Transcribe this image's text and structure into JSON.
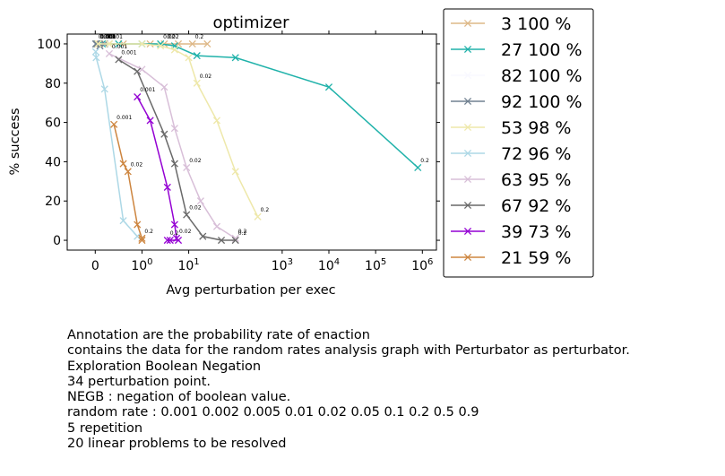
{
  "chart_data": {
    "type": "line",
    "title": "optimizer",
    "xlabel": "Avg perturbation per exec",
    "ylabel": "% success",
    "x_scale": "symlog",
    "xlim": [
      -0.6,
      2000000
    ],
    "ylim": [
      -5,
      105
    ],
    "x_ticks": [
      {
        "value": 0,
        "label": "0"
      },
      {
        "value": 1,
        "label": "10^0"
      },
      {
        "value": 10,
        "label": "10^1"
      },
      {
        "value": 1000,
        "label": "10^3"
      },
      {
        "value": 10000,
        "label": "10^4"
      },
      {
        "value": 100000,
        "label": "10^5"
      },
      {
        "value": 1000000,
        "label": "10^6"
      }
    ],
    "y_ticks": [
      0,
      20,
      40,
      60,
      80,
      100
    ],
    "legend_position": "outside right",
    "series": [
      {
        "name": "3 100 %",
        "color": "#DEB887",
        "points": [
          [
            0.04,
            100,
            "0.001"
          ],
          [
            0.1,
            100,
            ""
          ],
          [
            0.3,
            100,
            ""
          ],
          [
            0.6,
            100,
            ""
          ],
          [
            1.5,
            100,
            ""
          ],
          [
            3,
            100,
            "0.02"
          ],
          [
            6,
            100,
            ""
          ],
          [
            12,
            100,
            "0.2"
          ],
          [
            25,
            100,
            ""
          ]
        ]
      },
      {
        "name": "27 100 %",
        "color": "#20B2AA",
        "points": [
          [
            0.05,
            100,
            "0.001"
          ],
          [
            0.15,
            100,
            ""
          ],
          [
            0.5,
            100,
            ""
          ],
          [
            1.0,
            100,
            ""
          ],
          [
            2.5,
            100,
            "0.02"
          ],
          [
            5,
            99,
            ""
          ],
          [
            15,
            94,
            ""
          ],
          [
            100,
            93,
            ""
          ],
          [
            10000,
            78,
            ""
          ],
          [
            800000,
            37,
            "0.2"
          ]
        ]
      },
      {
        "name": "82 100 %",
        "color": "#F8F8FF",
        "points": [
          [
            0.01,
            100,
            ""
          ],
          [
            0.05,
            100,
            ""
          ],
          [
            0.2,
            100,
            ""
          ]
        ]
      },
      {
        "name": "92 100 %",
        "color": "#708090",
        "points": [
          [
            0.01,
            100,
            "0.001"
          ],
          [
            0.02,
            100,
            ""
          ],
          [
            0.05,
            100,
            ""
          ],
          [
            0.1,
            99,
            ""
          ],
          [
            0.2,
            100,
            "0.001"
          ]
        ]
      },
      {
        "name": "53 98 %",
        "color": "#EEE8AA",
        "points": [
          [
            0.06,
            100,
            "0.001"
          ],
          [
            0.3,
            100,
            ""
          ],
          [
            1.0,
            100,
            ""
          ],
          [
            2.5,
            99,
            ""
          ],
          [
            5,
            97,
            ""
          ],
          [
            10,
            93,
            ""
          ],
          [
            15,
            80,
            "0.02"
          ],
          [
            40,
            61,
            ""
          ],
          [
            100,
            35,
            ""
          ],
          [
            300,
            12,
            "0.2"
          ]
        ]
      },
      {
        "name": "72 96 %",
        "color": "#ADD8E6",
        "points": [
          [
            0.01,
            96,
            ""
          ],
          [
            0.02,
            93,
            ""
          ],
          [
            0.2,
            77,
            ""
          ],
          [
            0.6,
            10,
            ""
          ],
          [
            0.9,
            2,
            ""
          ]
        ]
      },
      {
        "name": "63 95 %",
        "color": "#D8BFD8",
        "points": [
          [
            0.3,
            95,
            "0.001"
          ],
          [
            1.0,
            87,
            ""
          ],
          [
            3,
            78,
            ""
          ],
          [
            5,
            57,
            ""
          ],
          [
            9,
            37,
            "0.02"
          ],
          [
            18,
            20,
            ""
          ],
          [
            40,
            7,
            ""
          ],
          [
            100,
            1,
            "0.2"
          ]
        ]
      },
      {
        "name": "67 92 %",
        "color": "#696969",
        "points": [
          [
            0.5,
            92,
            "0.001"
          ],
          [
            0.9,
            86,
            ""
          ],
          [
            3,
            54,
            ""
          ],
          [
            5,
            39,
            ""
          ],
          [
            9,
            13,
            "0.02"
          ],
          [
            20,
            2,
            ""
          ],
          [
            50,
            0,
            ""
          ],
          [
            100,
            0,
            "0.2"
          ]
        ]
      },
      {
        "name": "39 73 %",
        "color": "#9400D3",
        "points": [
          [
            0.9,
            73,
            "0.001"
          ],
          [
            1.5,
            61,
            ""
          ],
          [
            3.5,
            27,
            ""
          ],
          [
            5,
            8,
            ""
          ],
          [
            5.5,
            1,
            "0.02"
          ],
          [
            6,
            0,
            ""
          ],
          [
            4,
            0,
            ""
          ],
          [
            3.5,
            0,
            "0.2"
          ]
        ]
      },
      {
        "name": "21 59 %",
        "color": "#CD853F",
        "points": [
          [
            0.4,
            59,
            "0.001"
          ],
          [
            0.6,
            39,
            ""
          ],
          [
            0.7,
            35,
            "0.02"
          ],
          [
            0.9,
            8,
            ""
          ],
          [
            1.0,
            1,
            "0.2"
          ],
          [
            1.0,
            0,
            ""
          ]
        ]
      }
    ]
  },
  "caption": [
    "Annotation are the probability rate of enaction",
    "contains the data for the random rates analysis graph with Perturbator as perturbator.",
    "Exploration Boolean Negation",
    "34 perturbation point.",
    "NEGB : negation of boolean value.",
    "random rate : 0.001 0.002 0.005 0.01 0.02 0.05 0.1 0.2 0.5 0.9",
    "5 repetition",
    "20 linear problems to be resolved"
  ]
}
